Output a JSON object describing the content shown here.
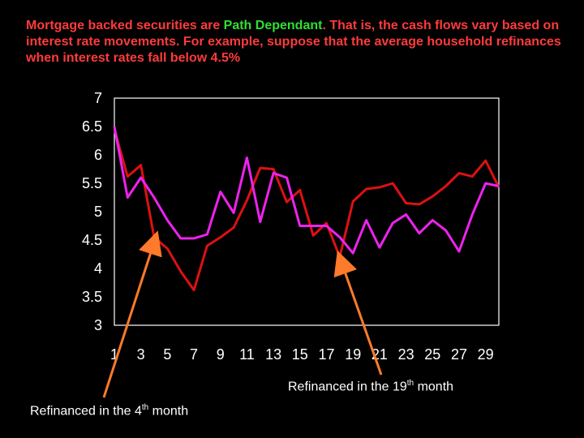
{
  "title": {
    "part1": "Mortgage backed securities are ",
    "highlight": "Path Dependant",
    "part2": ".  That is, the cash flows vary based on interest rate movements. For example, suppose that the average household refinances when interest rates fall below 4.5%"
  },
  "colors": {
    "background": "#000000",
    "title_text": "#ff3b3b",
    "highlight": "#33dd33",
    "series_1": "#dd1111",
    "series_2": "#ee22ee",
    "arrow": "#ff7a2a",
    "plot_border": "#ffffff"
  },
  "annotations": {
    "refi_4": {
      "prefix": "Refinanced in the 4",
      "sup": "th",
      "suffix": " month"
    },
    "refi_19": {
      "prefix": "Refinanced in the 19",
      "sup": "th",
      "suffix": " month"
    }
  },
  "chart_data": {
    "type": "line",
    "x": [
      1,
      2,
      3,
      4,
      5,
      6,
      7,
      8,
      9,
      10,
      11,
      12,
      13,
      14,
      15,
      16,
      17,
      18,
      19,
      20,
      21,
      22,
      23,
      24,
      25,
      26,
      27,
      28,
      29,
      30
    ],
    "x_tick_labels": [
      "1",
      "3",
      "5",
      "7",
      "9",
      "11",
      "13",
      "15",
      "17",
      "19",
      "21",
      "23",
      "25",
      "27",
      "29"
    ],
    "y_tick_labels": [
      "7",
      "6.5",
      "6",
      "5.5",
      "5",
      "4.5",
      "4",
      "3.5",
      "3"
    ],
    "ylim": [
      3,
      7
    ],
    "grid": false,
    "series": [
      {
        "color": "#dd1111",
        "values": [
          6.45,
          5.62,
          5.82,
          4.55,
          4.35,
          3.95,
          3.62,
          4.4,
          4.55,
          4.72,
          5.2,
          5.77,
          5.75,
          5.17,
          5.38,
          4.58,
          4.8,
          4.2,
          5.18,
          5.4,
          5.43,
          5.5,
          5.15,
          5.13,
          5.27,
          5.45,
          5.68,
          5.62,
          5.9,
          5.43
        ]
      },
      {
        "color": "#ee22ee",
        "values": [
          6.5,
          5.25,
          5.6,
          5.25,
          4.85,
          4.53,
          4.53,
          4.6,
          5.35,
          4.98,
          5.95,
          4.82,
          5.68,
          5.6,
          4.75,
          4.75,
          4.75,
          4.55,
          4.27,
          4.85,
          4.37,
          4.8,
          4.95,
          4.62,
          4.85,
          4.67,
          4.3,
          4.95,
          5.5,
          5.45
        ]
      }
    ]
  }
}
